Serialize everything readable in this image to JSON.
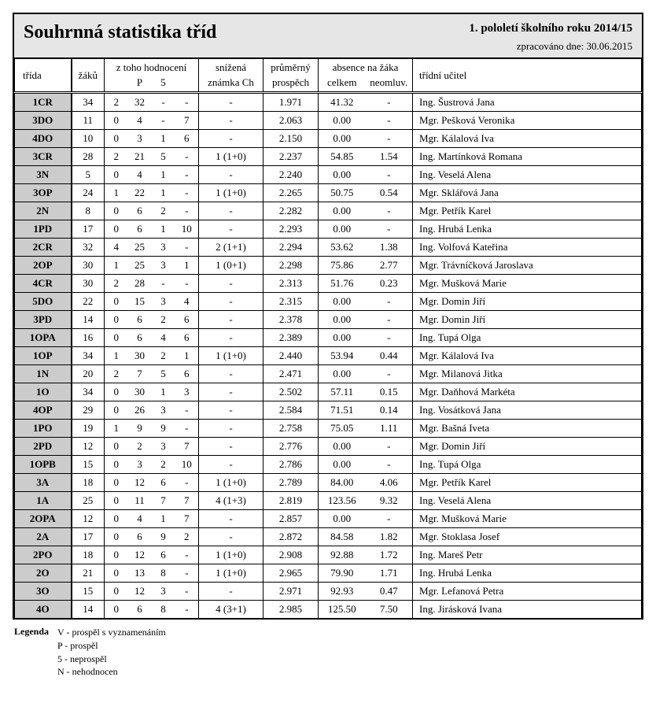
{
  "header": {
    "title": "Souhrnná statistika tříd",
    "subtitle": "1. pololetí školního roku 2014/15",
    "processed_label": "zpracováno dne: ",
    "processed_date": "30.06.2015"
  },
  "columns": {
    "trida": "třída",
    "zaku": "žáků",
    "hodnoceni_top": "z toho hodnocení",
    "h_v": "",
    "h_p": "P",
    "h_5": "5",
    "h_n": "",
    "snizena_top": "snížená",
    "snizena_bot": "známka Ch",
    "prumer_top": "průměrný",
    "prumer_bot": "prospěch",
    "absence_top": "absence na žáka",
    "absence_celkem": "celkem",
    "absence_neoml": "neomluv.",
    "ucitel": "třídní učitel"
  },
  "rows": [
    {
      "trida": "1CR",
      "zaku": "34",
      "v": "2",
      "p": "32",
      "n5": "-",
      "nn": "-",
      "sniz": "-",
      "pros": "1.971",
      "abs": "41.32",
      "neo": "-",
      "uc": "Ing. Šustrová Jana"
    },
    {
      "trida": "3DO",
      "zaku": "11",
      "v": "0",
      "p": "4",
      "n5": "-",
      "nn": "7",
      "sniz": "-",
      "pros": "2.063",
      "abs": "0.00",
      "neo": "-",
      "uc": "Mgr. Pešková Veronika"
    },
    {
      "trida": "4DO",
      "zaku": "10",
      "v": "0",
      "p": "3",
      "n5": "1",
      "nn": "6",
      "sniz": "-",
      "pros": "2.150",
      "abs": "0.00",
      "neo": "-",
      "uc": "Mgr. Kálalová Iva"
    },
    {
      "trida": "3CR",
      "zaku": "28",
      "v": "2",
      "p": "21",
      "n5": "5",
      "nn": "-",
      "sniz": "1 (1+0)",
      "pros": "2.237",
      "abs": "54.85",
      "neo": "1.54",
      "uc": "Ing. Martínková Romana"
    },
    {
      "trida": "3N",
      "zaku": "5",
      "v": "0",
      "p": "4",
      "n5": "1",
      "nn": "-",
      "sniz": "-",
      "pros": "2.240",
      "abs": "0.00",
      "neo": "-",
      "uc": "Ing. Veselá Alena"
    },
    {
      "trida": "3OP",
      "zaku": "24",
      "v": "1",
      "p": "22",
      "n5": "1",
      "nn": "-",
      "sniz": "1 (1+0)",
      "pros": "2.265",
      "abs": "50.75",
      "neo": "0.54",
      "uc": "Mgr. Sklářová Jana"
    },
    {
      "trida": "2N",
      "zaku": "8",
      "v": "0",
      "p": "6",
      "n5": "2",
      "nn": "-",
      "sniz": "-",
      "pros": "2.282",
      "abs": "0.00",
      "neo": "-",
      "uc": "Mgr. Petřík Karel"
    },
    {
      "trida": "1PD",
      "zaku": "17",
      "v": "0",
      "p": "6",
      "n5": "1",
      "nn": "10",
      "sniz": "-",
      "pros": "2.293",
      "abs": "0.00",
      "neo": "-",
      "uc": "Ing. Hrubá Lenka"
    },
    {
      "trida": "2CR",
      "zaku": "32",
      "v": "4",
      "p": "25",
      "n5": "3",
      "nn": "-",
      "sniz": "2 (1+1)",
      "pros": "2.294",
      "abs": "53.62",
      "neo": "1.38",
      "uc": "Ing. Volfová Kateřina"
    },
    {
      "trida": "2OP",
      "zaku": "30",
      "v": "1",
      "p": "25",
      "n5": "3",
      "nn": "1",
      "sniz": "1 (0+1)",
      "pros": "2.298",
      "abs": "75.86",
      "neo": "2.77",
      "uc": "Mgr. Trávníčková Jaroslava"
    },
    {
      "trida": "4CR",
      "zaku": "30",
      "v": "2",
      "p": "28",
      "n5": "-",
      "nn": "-",
      "sniz": "-",
      "pros": "2.313",
      "abs": "51.76",
      "neo": "0.23",
      "uc": "Mgr. Mušková Marie"
    },
    {
      "trida": "5DO",
      "zaku": "22",
      "v": "0",
      "p": "15",
      "n5": "3",
      "nn": "4",
      "sniz": "-",
      "pros": "2.315",
      "abs": "0.00",
      "neo": "-",
      "uc": "Mgr. Domin Jiří"
    },
    {
      "trida": "3PD",
      "zaku": "14",
      "v": "0",
      "p": "6",
      "n5": "2",
      "nn": "6",
      "sniz": "-",
      "pros": "2.378",
      "abs": "0.00",
      "neo": "-",
      "uc": "Mgr. Domin Jiří"
    },
    {
      "trida": "1OPA",
      "zaku": "16",
      "v": "0",
      "p": "6",
      "n5": "4",
      "nn": "6",
      "sniz": "-",
      "pros": "2.389",
      "abs": "0.00",
      "neo": "-",
      "uc": "Ing. Tupá Olga"
    },
    {
      "trida": "1OP",
      "zaku": "34",
      "v": "1",
      "p": "30",
      "n5": "2",
      "nn": "1",
      "sniz": "1 (1+0)",
      "pros": "2.440",
      "abs": "53.94",
      "neo": "0.44",
      "uc": "Mgr. Kálalová Iva"
    },
    {
      "trida": "1N",
      "zaku": "20",
      "v": "2",
      "p": "7",
      "n5": "5",
      "nn": "6",
      "sniz": "-",
      "pros": "2.471",
      "abs": "0.00",
      "neo": "-",
      "uc": "Mgr. Milanová Jitka"
    },
    {
      "trida": "1O",
      "zaku": "34",
      "v": "0",
      "p": "30",
      "n5": "1",
      "nn": "3",
      "sniz": "-",
      "pros": "2.502",
      "abs": "57.11",
      "neo": "0.15",
      "uc": "Mgr. Daňhová Markéta"
    },
    {
      "trida": "4OP",
      "zaku": "29",
      "v": "0",
      "p": "26",
      "n5": "3",
      "nn": "-",
      "sniz": "-",
      "pros": "2.584",
      "abs": "71.51",
      "neo": "0.14",
      "uc": "Ing. Vosátková Jana"
    },
    {
      "trida": "1PO",
      "zaku": "19",
      "v": "1",
      "p": "9",
      "n5": "9",
      "nn": "-",
      "sniz": "-",
      "pros": "2.758",
      "abs": "75.05",
      "neo": "1.11",
      "uc": "Mgr. Bašná Iveta"
    },
    {
      "trida": "2PD",
      "zaku": "12",
      "v": "0",
      "p": "2",
      "n5": "3",
      "nn": "7",
      "sniz": "-",
      "pros": "2.776",
      "abs": "0.00",
      "neo": "-",
      "uc": "Mgr. Domin Jiří"
    },
    {
      "trida": "1OPB",
      "zaku": "15",
      "v": "0",
      "p": "3",
      "n5": "2",
      "nn": "10",
      "sniz": "-",
      "pros": "2.786",
      "abs": "0.00",
      "neo": "-",
      "uc": "Ing. Tupá Olga"
    },
    {
      "trida": "3A",
      "zaku": "18",
      "v": "0",
      "p": "12",
      "n5": "6",
      "nn": "-",
      "sniz": "1 (1+0)",
      "pros": "2.789",
      "abs": "84.00",
      "neo": "4.06",
      "uc": "Mgr. Petřík Karel"
    },
    {
      "trida": "1A",
      "zaku": "25",
      "v": "0",
      "p": "11",
      "n5": "7",
      "nn": "7",
      "sniz": "4 (1+3)",
      "pros": "2.819",
      "abs": "123.56",
      "neo": "9.32",
      "uc": "Ing. Veselá Alena"
    },
    {
      "trida": "2OPA",
      "zaku": "12",
      "v": "0",
      "p": "4",
      "n5": "1",
      "nn": "7",
      "sniz": "-",
      "pros": "2.857",
      "abs": "0.00",
      "neo": "-",
      "uc": "Mgr. Mušková Marie"
    },
    {
      "trida": "2A",
      "zaku": "17",
      "v": "0",
      "p": "6",
      "n5": "9",
      "nn": "2",
      "sniz": "-",
      "pros": "2.872",
      "abs": "84.58",
      "neo": "1.82",
      "uc": "Mgr. Stoklasa Josef"
    },
    {
      "trida": "2PO",
      "zaku": "18",
      "v": "0",
      "p": "12",
      "n5": "6",
      "nn": "-",
      "sniz": "1 (1+0)",
      "pros": "2.908",
      "abs": "92.88",
      "neo": "1.72",
      "uc": "Ing. Mareš Petr"
    },
    {
      "trida": "2O",
      "zaku": "21",
      "v": "0",
      "p": "13",
      "n5": "8",
      "nn": "-",
      "sniz": "1 (1+0)",
      "pros": "2.965",
      "abs": "79.90",
      "neo": "1.71",
      "uc": "Ing. Hrubá Lenka"
    },
    {
      "trida": "3O",
      "zaku": "15",
      "v": "0",
      "p": "12",
      "n5": "3",
      "nn": "-",
      "sniz": "-",
      "pros": "2.971",
      "abs": "92.93",
      "neo": "0.47",
      "uc": "Mgr. Lefanová Petra"
    },
    {
      "trida": "4O",
      "zaku": "14",
      "v": "0",
      "p": "6",
      "n5": "8",
      "nn": "-",
      "sniz": "4 (3+1)",
      "pros": "2.985",
      "abs": "125.50",
      "neo": "7.50",
      "uc": "Ing. Jirásková Ivana"
    }
  ],
  "legend": {
    "title": "Legenda",
    "lines": [
      "V - prospěl s vyznamenáním",
      "P - prospěl",
      "5 - neprospěl",
      "N - nehodnocen"
    ]
  }
}
